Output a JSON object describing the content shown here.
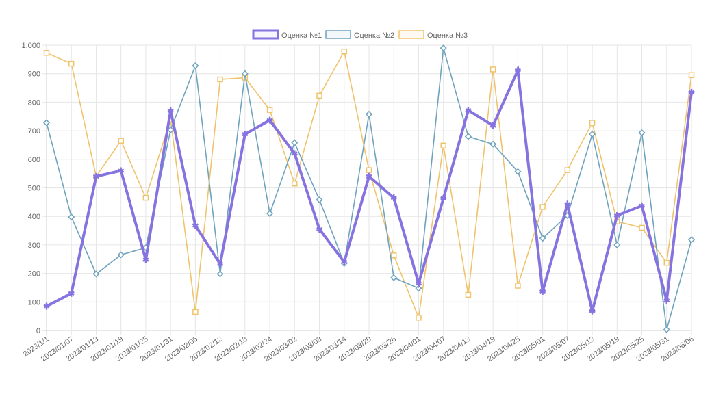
{
  "chart_data": {
    "type": "line",
    "title": "",
    "xlabel": "",
    "ylabel": "",
    "ylim": [
      0,
      1000
    ],
    "yticks": [
      0,
      100,
      200,
      300,
      400,
      500,
      600,
      700,
      800,
      900,
      1000
    ],
    "ytick_labels": [
      "0",
      "100",
      "200",
      "300",
      "400",
      "500",
      "600",
      "700",
      "800",
      "900",
      "1,000"
    ],
    "grid": true,
    "legend_position": "top",
    "categories": [
      "2023/1/1",
      "2023/01/07",
      "2023/01/13",
      "2023/01/19",
      "2023/01/25",
      "2023/01/31",
      "2023/02/06",
      "2023/02/12",
      "2023/02/18",
      "2023/02/24",
      "2023/03/02",
      "2023/03/08",
      "2023/03/14",
      "2023/03/20",
      "2023/03/26",
      "2023/04/01",
      "2023/04/07",
      "2023/04/13",
      "2023/04/19",
      "2023/04/25",
      "2023/05/01",
      "2023/05/07",
      "2023/05/13",
      "2023/05/19",
      "2023/05/25",
      "2023/05/31",
      "2023/06/06"
    ],
    "series": [
      {
        "name": "Оценка №1",
        "color": "#8673e0",
        "marker": "star",
        "line": "thick",
        "values": [
          85,
          130,
          540,
          560,
          248,
          770,
          368,
          233,
          688,
          737,
          620,
          355,
          240,
          540,
          465,
          165,
          463,
          772,
          718,
          912,
          137,
          443,
          68,
          403,
          437,
          105,
          835
        ]
      },
      {
        "name": "Оценка №2",
        "color": "#6fa3bd",
        "marker": "diamond",
        "line": "thin",
        "values": [
          728,
          398,
          198,
          265,
          290,
          703,
          928,
          198,
          900,
          410,
          658,
          458,
          235,
          758,
          185,
          148,
          990,
          680,
          653,
          557,
          323,
          403,
          688,
          300,
          693,
          3,
          318
        ]
      },
      {
        "name": "Оценка №3",
        "color": "#f0c36b",
        "marker": "square",
        "line": "thin",
        "values": [
          973,
          935,
          540,
          665,
          465,
          740,
          65,
          880,
          886,
          773,
          515,
          823,
          978,
          562,
          263,
          45,
          648,
          125,
          915,
          157,
          433,
          562,
          728,
          382,
          360,
          237,
          895
        ]
      }
    ]
  }
}
